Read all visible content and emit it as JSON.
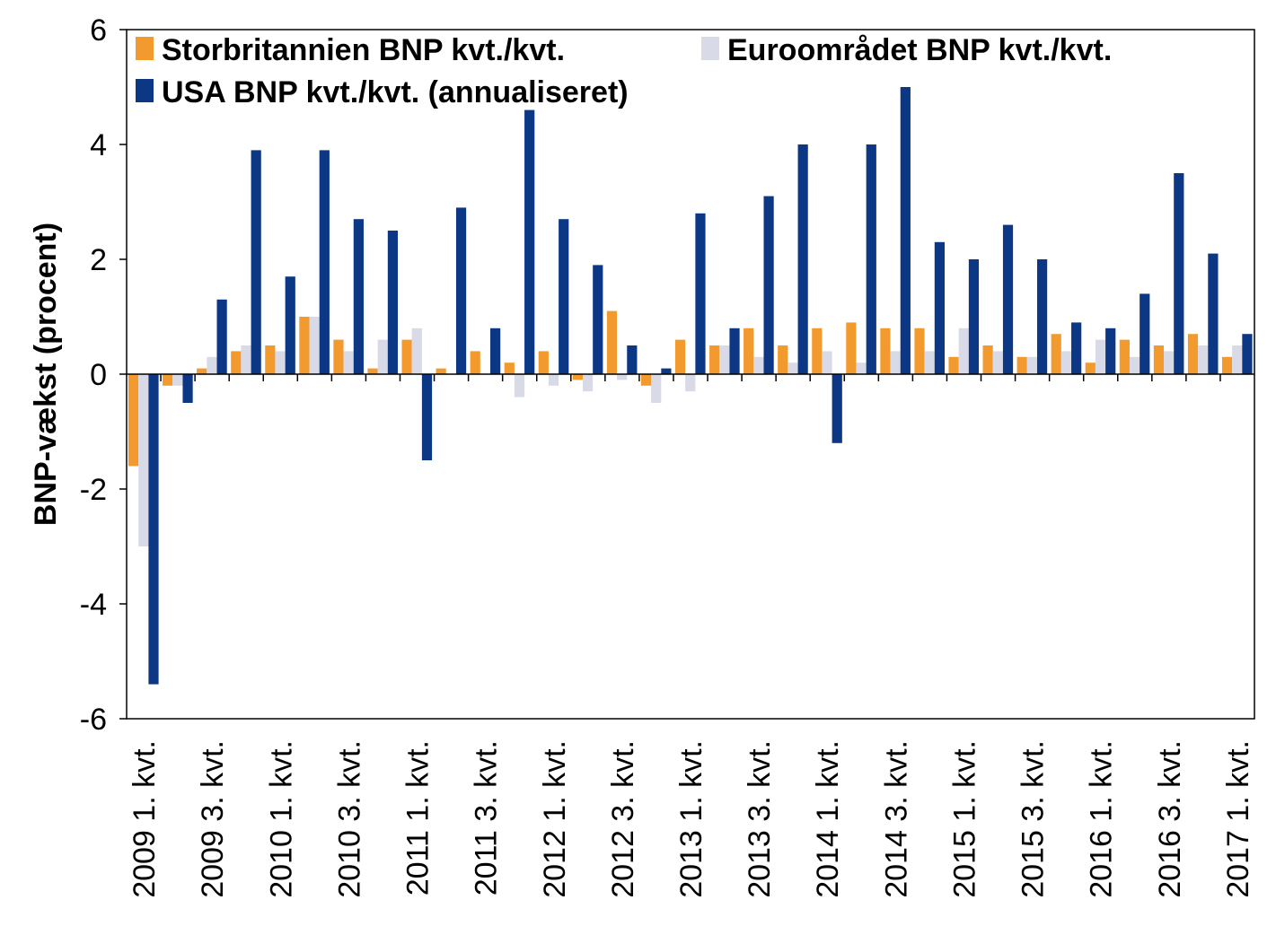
{
  "chart_data": {
    "type": "bar",
    "title": "",
    "xlabel": "",
    "ylabel": "BNP-vækst (procent)",
    "ylim": [
      -6,
      6
    ],
    "yticks": [
      6,
      4,
      2,
      0,
      -2,
      -4,
      -6
    ],
    "ytick_labels": [
      "6",
      "4",
      "2",
      "0",
      "-2",
      "-4",
      "-6"
    ],
    "categories": [
      "2009 1. kvt.",
      "2009 2. kvt.",
      "2009 3. kvt.",
      "2009 4. kvt.",
      "2010 1. kvt.",
      "2010 2. kvt.",
      "2010 3. kvt.",
      "2010 4. kvt.",
      "2011 1. kvt.",
      "2011 2. kvt.",
      "2011 3. kvt.",
      "2011 4. kvt.",
      "2012 1. kvt.",
      "2012 2. kvt.",
      "2012 3. kvt.",
      "2012 4. kvt.",
      "2013 1. kvt.",
      "2013 2. kvt.",
      "2013 3. kvt.",
      "2013 4. kvt.",
      "2014 1. kvt.",
      "2014 2. kvt.",
      "2014 3. kvt.",
      "2014 4. kvt.",
      "2015 1. kvt.",
      "2015 2. kvt.",
      "2015 3. kvt.",
      "2015 4. kvt.",
      "2016 1. kvt.",
      "2016 2. kvt.",
      "2016 3. kvt.",
      "2016 4. kvt.",
      "2017 1. kvt."
    ],
    "visible_tick_labels": [
      "2009 1. kvt.",
      "2009 3. kvt.",
      "2010 1. kvt.",
      "2010 3. kvt.",
      "2011 1. kvt.",
      "2011 3. kvt.",
      "2012 1. kvt.",
      "2012 3. kvt.",
      "2013 1. kvt.",
      "2013 3. kvt.",
      "2014 1. kvt.",
      "2014 3. kvt.",
      "2015 1. kvt.",
      "2015 3. kvt.",
      "2016 1. kvt.",
      "2016 3. kvt.",
      "2017 1. kvt."
    ],
    "series": [
      {
        "name": "Storbritannien BNP kvt./kvt.",
        "color": "#F39A2E",
        "values": [
          -1.6,
          -0.2,
          0.1,
          0.4,
          0.5,
          1.0,
          0.6,
          0.1,
          0.6,
          0.1,
          0.4,
          0.2,
          0.4,
          -0.1,
          1.1,
          -0.2,
          0.6,
          0.5,
          0.8,
          0.5,
          0.8,
          0.9,
          0.8,
          0.8,
          0.3,
          0.5,
          0.3,
          0.7,
          0.2,
          0.6,
          0.5,
          0.7,
          0.3
        ]
      },
      {
        "name": "Euroområdet BNP kvt./kvt.",
        "color": "#D9DAE8",
        "values": [
          -3.0,
          -0.2,
          0.3,
          0.5,
          0.4,
          1.0,
          0.4,
          0.6,
          0.8,
          0.0,
          0.0,
          -0.4,
          -0.2,
          -0.3,
          -0.1,
          -0.5,
          -0.3,
          0.5,
          0.3,
          0.2,
          0.4,
          0.2,
          0.4,
          0.4,
          0.8,
          0.4,
          0.3,
          0.4,
          0.6,
          0.3,
          0.4,
          0.5,
          0.5
        ]
      },
      {
        "name": "USA BNP kvt./kvt. (annualiseret)",
        "color": "#0B3784",
        "values": [
          -5.4,
          -0.5,
          1.3,
          3.9,
          1.7,
          3.9,
          2.7,
          2.5,
          -1.5,
          2.9,
          0.8,
          4.6,
          2.7,
          1.9,
          0.5,
          0.1,
          2.8,
          0.8,
          3.1,
          4.0,
          -1.2,
          4.0,
          5.0,
          2.3,
          2.0,
          2.6,
          2.0,
          0.9,
          0.8,
          1.4,
          3.5,
          2.1,
          0.7
        ]
      }
    ],
    "legend_position": "top",
    "grid": false
  }
}
